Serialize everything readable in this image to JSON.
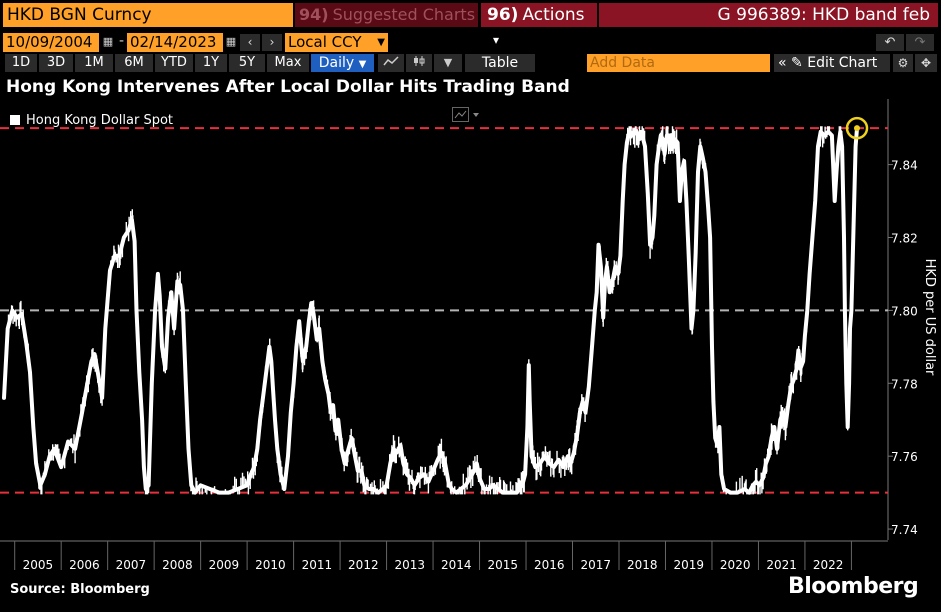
{
  "toolbar": {
    "ticker": "HKD BGN Curncy",
    "suggested_code": "94)",
    "suggested": "Suggested Charts",
    "actions_code": "96)",
    "actions": "Actions",
    "actions_arrow": "▾",
    "chart_title": "G 996389: HKD band feb"
  },
  "controls": {
    "start_date": "10/09/2004",
    "end_date": "02/14/2023",
    "date_sep": "-",
    "currency": "Local CCY",
    "ranges": [
      "1D",
      "3D",
      "1M",
      "6M",
      "YTD",
      "1Y",
      "5Y",
      "Max"
    ],
    "frequency": "Daily",
    "table_label": "Table",
    "add_data_placeholder": "Add Data",
    "edit_chart": "Edit Chart",
    "icons": [
      "calendar-icon",
      "chevron-left-icon",
      "chevron-right-icon",
      "undo-icon",
      "redo-icon",
      "line-chart-icon",
      "candlestick-icon",
      "collapse-icon",
      "gear-icon",
      "pin-icon"
    ]
  },
  "headline": "Hong Kong Intervenes After Local Dollar Hits Trading Band",
  "footer": {
    "source": "Source:  Bloomberg",
    "brand": "Bloomberg"
  },
  "colors": {
    "accent_orange": "#ffa028",
    "actions_red": "#8a1424",
    "band_line": "#e8303c",
    "peg_line": "#b4b4b4",
    "series": "#ffffff",
    "marker": "#f0d21e"
  },
  "chart_data": {
    "type": "line",
    "series": [
      {
        "name": "Hong Kong Dollar Spot",
        "points": [
          [
            2004.77,
            7.776
          ],
          [
            2004.85,
            7.795
          ],
          [
            2004.95,
            7.8
          ],
          [
            2005.05,
            7.798
          ],
          [
            2005.15,
            7.799
          ],
          [
            2005.25,
            7.791
          ],
          [
            2005.33,
            7.783
          ],
          [
            2005.4,
            7.768
          ],
          [
            2005.46,
            7.758
          ],
          [
            2005.55,
            7.752
          ],
          [
            2005.65,
            7.755
          ],
          [
            2005.75,
            7.76
          ],
          [
            2005.85,
            7.762
          ],
          [
            2006.0,
            7.757
          ],
          [
            2006.15,
            7.764
          ],
          [
            2006.3,
            7.762
          ],
          [
            2006.45,
            7.772
          ],
          [
            2006.55,
            7.779
          ],
          [
            2006.65,
            7.786
          ],
          [
            2006.72,
            7.788
          ],
          [
            2006.8,
            7.782
          ],
          [
            2006.88,
            7.776
          ],
          [
            2006.95,
            7.795
          ],
          [
            2007.05,
            7.811
          ],
          [
            2007.15,
            7.815
          ],
          [
            2007.25,
            7.815
          ],
          [
            2007.35,
            7.82
          ],
          [
            2007.45,
            7.822
          ],
          [
            2007.52,
            7.825
          ],
          [
            2007.58,
            7.819
          ],
          [
            2007.62,
            7.8
          ],
          [
            2007.68,
            7.783
          ],
          [
            2007.74,
            7.77
          ],
          [
            2007.78,
            7.757
          ],
          [
            2007.82,
            7.751
          ],
          [
            2007.88,
            7.752
          ],
          [
            2007.95,
            7.78
          ],
          [
            2008.02,
            7.8
          ],
          [
            2008.08,
            7.81
          ],
          [
            2008.12,
            7.804
          ],
          [
            2008.17,
            7.79
          ],
          [
            2008.24,
            7.784
          ],
          [
            2008.3,
            7.798
          ],
          [
            2008.37,
            7.805
          ],
          [
            2008.43,
            7.795
          ],
          [
            2008.5,
            7.808
          ],
          [
            2008.56,
            7.807
          ],
          [
            2008.62,
            7.8
          ],
          [
            2008.68,
            7.78
          ],
          [
            2008.74,
            7.762
          ],
          [
            2008.8,
            7.752
          ],
          [
            2008.88,
            7.75
          ],
          [
            2009.0,
            7.752
          ],
          [
            2009.2,
            7.751
          ],
          [
            2009.4,
            7.75
          ],
          [
            2009.6,
            7.75
          ],
          [
            2009.8,
            7.751
          ],
          [
            2010.0,
            7.752
          ],
          [
            2010.08,
            7.755
          ],
          [
            2010.15,
            7.757
          ],
          [
            2010.22,
            7.762
          ],
          [
            2010.28,
            7.77
          ],
          [
            2010.33,
            7.775
          ],
          [
            2010.38,
            7.78
          ],
          [
            2010.43,
            7.785
          ],
          [
            2010.48,
            7.79
          ],
          [
            2010.52,
            7.786
          ],
          [
            2010.56,
            7.778
          ],
          [
            2010.6,
            7.77
          ],
          [
            2010.65,
            7.762
          ],
          [
            2010.72,
            7.755
          ],
          [
            2010.8,
            7.751
          ],
          [
            2010.88,
            7.76
          ],
          [
            2010.94,
            7.772
          ],
          [
            2011.0,
            7.78
          ],
          [
            2011.06,
            7.79
          ],
          [
            2011.12,
            7.797
          ],
          [
            2011.16,
            7.791
          ],
          [
            2011.2,
            7.786
          ],
          [
            2011.27,
            7.79
          ],
          [
            2011.33,
            7.797
          ],
          [
            2011.38,
            7.802
          ],
          [
            2011.43,
            7.799
          ],
          [
            2011.5,
            7.792
          ],
          [
            2011.55,
            7.795
          ],
          [
            2011.62,
            7.786
          ],
          [
            2011.68,
            7.781
          ],
          [
            2011.75,
            7.777
          ],
          [
            2011.8,
            7.772
          ],
          [
            2011.85,
            7.774
          ],
          [
            2011.9,
            7.767
          ],
          [
            2011.96,
            7.77
          ],
          [
            2012.03,
            7.762
          ],
          [
            2012.1,
            7.758
          ],
          [
            2012.18,
            7.762
          ],
          [
            2012.25,
            7.765
          ],
          [
            2012.32,
            7.76
          ],
          [
            2012.38,
            7.756
          ],
          [
            2012.46,
            7.756
          ],
          [
            2012.52,
            7.752
          ],
          [
            2012.62,
            7.751
          ],
          [
            2012.72,
            7.751
          ],
          [
            2012.82,
            7.75
          ],
          [
            2012.92,
            7.751
          ],
          [
            2013.0,
            7.752
          ],
          [
            2013.08,
            7.758
          ],
          [
            2013.15,
            7.762
          ],
          [
            2013.22,
            7.761
          ],
          [
            2013.3,
            7.763
          ],
          [
            2013.36,
            7.758
          ],
          [
            2013.44,
            7.755
          ],
          [
            2013.52,
            7.754
          ],
          [
            2013.6,
            7.752
          ],
          [
            2013.7,
            7.754
          ],
          [
            2013.8,
            7.755
          ],
          [
            2013.9,
            7.753
          ],
          [
            2014.0,
            7.756
          ],
          [
            2014.1,
            7.759
          ],
          [
            2014.18,
            7.761
          ],
          [
            2014.26,
            7.758
          ],
          [
            2014.33,
            7.753
          ],
          [
            2014.4,
            7.751
          ],
          [
            2014.5,
            7.75
          ],
          [
            2014.6,
            7.751
          ],
          [
            2014.7,
            7.752
          ],
          [
            2014.8,
            7.754
          ],
          [
            2014.88,
            7.756
          ],
          [
            2014.94,
            7.758
          ],
          [
            2015.0,
            7.754
          ],
          [
            2015.1,
            7.751
          ],
          [
            2015.2,
            7.751
          ],
          [
            2015.3,
            7.752
          ],
          [
            2015.4,
            7.751
          ],
          [
            2015.5,
            7.75
          ],
          [
            2015.6,
            7.75
          ],
          [
            2015.7,
            7.75
          ],
          [
            2015.8,
            7.75
          ],
          [
            2015.86,
            7.751
          ],
          [
            2015.92,
            7.752
          ],
          [
            2015.98,
            7.755
          ],
          [
            2016.03,
            7.768
          ],
          [
            2016.06,
            7.785
          ],
          [
            2016.08,
            7.775
          ],
          [
            2016.12,
            7.76
          ],
          [
            2016.2,
            7.757
          ],
          [
            2016.3,
            7.758
          ],
          [
            2016.4,
            7.76
          ],
          [
            2016.5,
            7.758
          ],
          [
            2016.6,
            7.757
          ],
          [
            2016.7,
            7.759
          ],
          [
            2016.8,
            7.757
          ],
          [
            2016.9,
            7.76
          ],
          [
            2016.96,
            7.758
          ],
          [
            2017.03,
            7.761
          ],
          [
            2017.1,
            7.766
          ],
          [
            2017.16,
            7.772
          ],
          [
            2017.22,
            7.775
          ],
          [
            2017.28,
            7.772
          ],
          [
            2017.35,
            7.779
          ],
          [
            2017.42,
            7.79
          ],
          [
            2017.48,
            7.8
          ],
          [
            2017.52,
            7.805
          ],
          [
            2017.56,
            7.818
          ],
          [
            2017.61,
            7.812
          ],
          [
            2017.66,
            7.798
          ],
          [
            2017.7,
            7.808
          ],
          [
            2017.74,
            7.812
          ],
          [
            2017.8,
            7.805
          ],
          [
            2017.86,
            7.808
          ],
          [
            2017.92,
            7.812
          ],
          [
            2017.98,
            7.81
          ],
          [
            2018.03,
            7.815
          ],
          [
            2018.08,
            7.83
          ],
          [
            2018.12,
            7.84
          ],
          [
            2018.17,
            7.846
          ],
          [
            2018.22,
            7.849
          ],
          [
            2018.3,
            7.848
          ],
          [
            2018.38,
            7.849
          ],
          [
            2018.44,
            7.847
          ],
          [
            2018.5,
            7.848
          ],
          [
            2018.56,
            7.845
          ],
          [
            2018.62,
            7.832
          ],
          [
            2018.67,
            7.818
          ],
          [
            2018.72,
            7.82
          ],
          [
            2018.76,
            7.826
          ],
          [
            2018.81,
            7.84
          ],
          [
            2018.86,
            7.845
          ],
          [
            2018.9,
            7.848
          ],
          [
            2018.94,
            7.847
          ],
          [
            2018.98,
            7.843
          ],
          [
            2019.03,
            7.848
          ],
          [
            2019.09,
            7.846
          ],
          [
            2019.15,
            7.847
          ],
          [
            2019.2,
            7.847
          ],
          [
            2019.26,
            7.846
          ],
          [
            2019.31,
            7.83
          ],
          [
            2019.35,
            7.838
          ],
          [
            2019.4,
            7.841
          ],
          [
            2019.45,
            7.83
          ],
          [
            2019.5,
            7.815
          ],
          [
            2019.56,
            7.795
          ],
          [
            2019.6,
            7.8
          ],
          [
            2019.65,
            7.816
          ],
          [
            2019.7,
            7.838
          ],
          [
            2019.75,
            7.845
          ],
          [
            2019.8,
            7.842
          ],
          [
            2019.86,
            7.838
          ],
          [
            2019.92,
            7.828
          ],
          [
            2019.96,
            7.82
          ],
          [
            2020.0,
            7.79
          ],
          [
            2020.03,
            7.775
          ],
          [
            2020.07,
            7.765
          ],
          [
            2020.12,
            7.763
          ],
          [
            2020.16,
            7.768
          ],
          [
            2020.2,
            7.755
          ],
          [
            2020.26,
            7.751
          ],
          [
            2020.4,
            7.75
          ],
          [
            2020.55,
            7.75
          ],
          [
            2020.7,
            7.751
          ],
          [
            2020.8,
            7.75
          ],
          [
            2020.88,
            7.752
          ],
          [
            2020.95,
            7.753
          ],
          [
            2021.02,
            7.752
          ],
          [
            2021.1,
            7.754
          ],
          [
            2021.16,
            7.758
          ],
          [
            2021.22,
            7.76
          ],
          [
            2021.28,
            7.765
          ],
          [
            2021.34,
            7.768
          ],
          [
            2021.4,
            7.762
          ],
          [
            2021.47,
            7.77
          ],
          [
            2021.53,
            7.772
          ],
          [
            2021.58,
            7.768
          ],
          [
            2021.64,
            7.774
          ],
          [
            2021.7,
            7.779
          ],
          [
            2021.76,
            7.781
          ],
          [
            2021.82,
            7.784
          ],
          [
            2021.86,
            7.789
          ],
          [
            2021.9,
            7.784
          ],
          [
            2021.96,
            7.786
          ],
          [
            2022.0,
            7.793
          ],
          [
            2022.05,
            7.8
          ],
          [
            2022.1,
            7.81
          ],
          [
            2022.16,
            7.82
          ],
          [
            2022.22,
            7.83
          ],
          [
            2022.28,
            7.845
          ],
          [
            2022.34,
            7.849
          ],
          [
            2022.42,
            7.848
          ],
          [
            2022.5,
            7.849
          ],
          [
            2022.58,
            7.848
          ],
          [
            2022.64,
            7.83
          ],
          [
            2022.68,
            7.838
          ],
          [
            2022.72,
            7.845
          ],
          [
            2022.76,
            7.849
          ],
          [
            2022.8,
            7.845
          ],
          [
            2022.84,
            7.82
          ],
          [
            2022.86,
            7.8
          ],
          [
            2022.89,
            7.78
          ],
          [
            2022.92,
            7.768
          ],
          [
            2022.95,
            7.78
          ],
          [
            2022.97,
            7.795
          ],
          [
            2023.0,
            7.8
          ],
          [
            2023.03,
            7.815
          ],
          [
            2023.06,
            7.83
          ],
          [
            2023.09,
            7.845
          ],
          [
            2023.12,
            7.85
          ]
        ]
      }
    ],
    "reference_lines": [
      {
        "value": 7.85,
        "style": "dashed",
        "color": "#e8303c"
      },
      {
        "value": 7.8,
        "style": "dashed",
        "color": "#b4b4b4"
      },
      {
        "value": 7.75,
        "style": "dashed",
        "color": "#e8303c"
      }
    ],
    "highlight_point": [
      2023.12,
      7.85
    ],
    "xlim": [
      2004.77,
      2023.12
    ],
    "ylim": [
      7.737,
      7.858
    ],
    "yticks": [
      7.74,
      7.76,
      7.78,
      7.8,
      7.82,
      7.84
    ],
    "ytick_labels": [
      "7.74",
      "7.76",
      "7.78",
      "7.80",
      "7.82",
      "7.84"
    ],
    "x_year_labels": [
      "2005",
      "2006",
      "2007",
      "2008",
      "2009",
      "2010",
      "2011",
      "2012",
      "2013",
      "2014",
      "2015",
      "2016",
      "2017",
      "2018",
      "2019",
      "2020",
      "2021",
      "2022"
    ],
    "ylabel": "HKD per US dollar",
    "xlabel": "",
    "legend": "top-left",
    "grid": false,
    "axis_side": "right"
  }
}
